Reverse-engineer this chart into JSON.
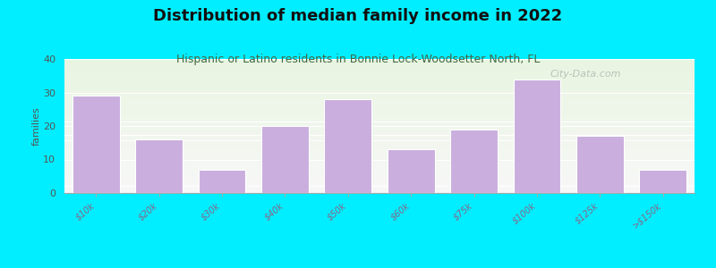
{
  "title": "Distribution of median family income in 2022",
  "subtitle": "Hispanic or Latino residents in Bonnie Lock-Woodsetter North, FL",
  "categories": [
    "$10k",
    "$20k",
    "$30k",
    "$40k",
    "$50k",
    "$60k",
    "$75k",
    "$100k",
    "$125k",
    ">$150k"
  ],
  "values": [
    29,
    16,
    7,
    20,
    28,
    13,
    19,
    34,
    17,
    7
  ],
  "bar_color": "#c9aede",
  "bar_edge_color": "white",
  "ylabel": "families",
  "ylim": [
    0,
    40
  ],
  "yticks": [
    0,
    10,
    20,
    30,
    40
  ],
  "background_outer": "#00eeff",
  "background_inner_top": "#eaf5e8",
  "background_inner_bottom": "#f8f8f8",
  "title_fontsize": 13,
  "title_color": "#111111",
  "subtitle_fontsize": 9,
  "subtitle_color": "#446644",
  "tick_label_color": "#886688",
  "tick_label_fontsize": 7,
  "ylabel_color": "#555555",
  "ylabel_fontsize": 8,
  "ytick_color": "#555555",
  "ytick_fontsize": 8,
  "watermark": "City-Data.com",
  "watermark_color": "#aaaaaa",
  "watermark_fontsize": 8
}
